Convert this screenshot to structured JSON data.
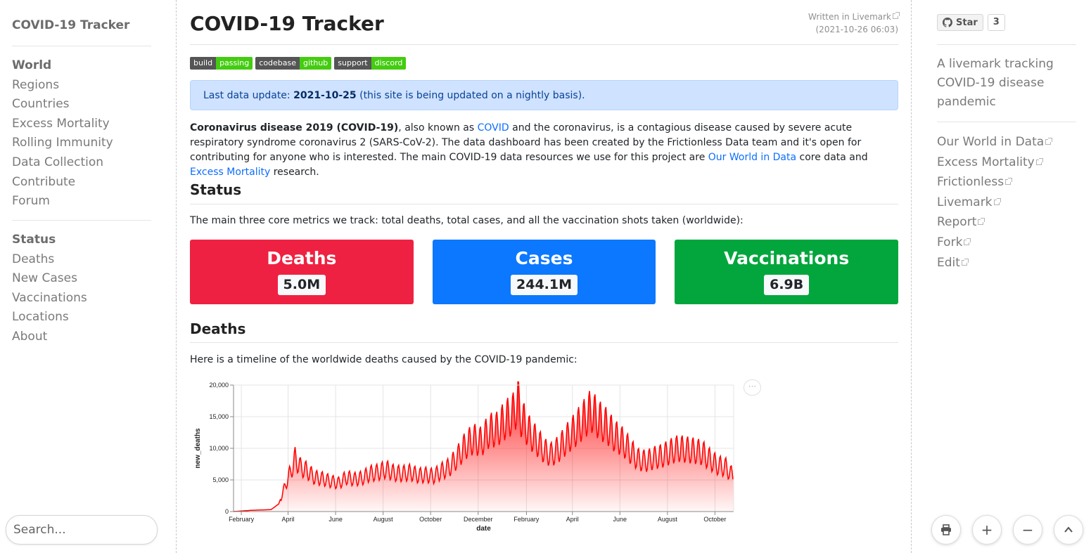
{
  "left": {
    "brand": "COVID-19 Tracker",
    "nav1": [
      {
        "label": "World",
        "head": true
      },
      {
        "label": "Regions"
      },
      {
        "label": "Countries"
      },
      {
        "label": "Excess Mortality"
      },
      {
        "label": "Rolling Immunity"
      },
      {
        "label": "Data Collection"
      },
      {
        "label": "Contribute"
      },
      {
        "label": "Forum"
      }
    ],
    "nav2": [
      {
        "label": "Status",
        "head": true
      },
      {
        "label": "Deaths"
      },
      {
        "label": "New Cases"
      },
      {
        "label": "Vaccinations"
      },
      {
        "label": "Locations"
      },
      {
        "label": "About"
      }
    ],
    "search_placeholder": "Search..."
  },
  "main": {
    "title": "COVID-19 Tracker",
    "written_label": "Written in Livemark",
    "written_date": "(2021-10-26 06:03)",
    "badges": [
      {
        "key": "build",
        "value": "passing"
      },
      {
        "key": "codebase",
        "value": "github"
      },
      {
        "key": "support",
        "value": "discord"
      }
    ],
    "alert": {
      "prefix": "Last data update: ",
      "date": "2021-10-25",
      "suffix": " (this site is being updated on a nightly basis)."
    },
    "intro": {
      "bold": "Coronavirus disease 2019 (COVID-19)",
      "t1": ", also known as ",
      "l1": "COVID",
      "t2": " and the coronavirus, is a contagious disease caused by severe acute respiratory syndrome coronavirus 2 (SARS-CoV-2). The data dashboard has been created by the Frictionless Data team and it's open for contributing for anyone who is interested. The main COVID-19 data resources we use for this project are ",
      "l2": "Our World in Data",
      "t3": " core data and ",
      "l3": "Excess Mortality",
      "t4": " research."
    },
    "status_heading": "Status",
    "status_text": "The main three core metrics we track: total deaths, total cases, and all the vaccination shots taken (worldwide):",
    "cards": [
      {
        "title": "Deaths",
        "value": "5.0M",
        "color": "#ef2142"
      },
      {
        "title": "Cases",
        "value": "244.1M",
        "color": "#0b78ff"
      },
      {
        "title": "Vaccinations",
        "value": "6.9B",
        "color": "#03a63c"
      }
    ],
    "deaths_heading": "Deaths",
    "deaths_text": "Here is a timeline of the worldwide deaths caused by the COVID-19 pandemic:",
    "chart_menu": "···"
  },
  "chart_data": {
    "type": "area",
    "title": "",
    "xlabel": "date",
    "ylabel": "new_deaths",
    "ylim": [
      0,
      20000
    ],
    "yticks": [
      "0",
      "5,000",
      "10,000",
      "15,000",
      "20,000"
    ],
    "xticks": [
      "February",
      "April",
      "June",
      "August",
      "October",
      "December",
      "February",
      "April",
      "June",
      "August",
      "October"
    ],
    "color": "#ff0000",
    "grid": true,
    "series": [
      {
        "x": [
          "2020-01-22",
          "2020-02-15",
          "2020-03-10",
          "2020-03-20",
          "2020-03-31",
          "2020-04-05",
          "2020-04-10",
          "2020-04-17",
          "2020-04-25",
          "2020-05-05",
          "2020-05-15",
          "2020-05-25",
          "2020-06-05",
          "2020-06-15",
          "2020-06-25",
          "2020-07-05",
          "2020-07-15",
          "2020-07-25",
          "2020-08-05",
          "2020-08-15",
          "2020-08-25",
          "2020-09-05",
          "2020-09-15",
          "2020-09-25",
          "2020-10-05",
          "2020-10-15",
          "2020-10-25",
          "2020-11-05",
          "2020-11-15",
          "2020-11-25",
          "2020-12-05",
          "2020-12-15",
          "2020-12-25",
          "2021-01-05",
          "2021-01-15",
          "2021-01-21",
          "2021-01-25",
          "2021-02-05",
          "2021-02-15",
          "2021-02-25",
          "2021-03-05",
          "2021-03-15",
          "2021-03-25",
          "2021-04-05",
          "2021-04-15",
          "2021-04-25",
          "2021-05-05",
          "2021-05-15",
          "2021-05-25",
          "2021-06-05",
          "2021-06-15",
          "2021-06-25",
          "2021-07-05",
          "2021-07-15",
          "2021-07-25",
          "2021-08-05",
          "2021-08-15",
          "2021-08-25",
          "2021-09-05",
          "2021-09-15",
          "2021-09-25",
          "2021-10-05",
          "2021-10-15",
          "2021-10-25"
        ],
        "y": [
          0,
          200,
          300,
          1200,
          5000,
          6500,
          8400,
          7000,
          6500,
          5400,
          5200,
          4800,
          4500,
          5400,
          5100,
          5300,
          6000,
          6200,
          6700,
          6100,
          6000,
          6200,
          5700,
          5800,
          5600,
          6400,
          7000,
          8700,
          10500,
          11500,
          11000,
          12800,
          13000,
          14500,
          15500,
          17500,
          15000,
          12500,
          11000,
          9500,
          9000,
          10000,
          11500,
          13000,
          14500,
          16000,
          14500,
          13500,
          12000,
          11000,
          9500,
          8200,
          8000,
          8500,
          8800,
          9500,
          10000,
          9800,
          9600,
          9300,
          8200,
          7300,
          7000,
          5500
        ]
      }
    ]
  },
  "right": {
    "star_label": "Star",
    "star_count": "3",
    "description": "A livemark tracking COVID-19 disease pandemic",
    "links": [
      "Our World in Data",
      "Excess Mortality",
      "Frictionless",
      "Livemark",
      "Report",
      "Fork",
      "Edit"
    ],
    "fab": {
      "print": "🖶",
      "zoom_in": "+",
      "zoom_out": "−",
      "top": "⌃"
    }
  }
}
